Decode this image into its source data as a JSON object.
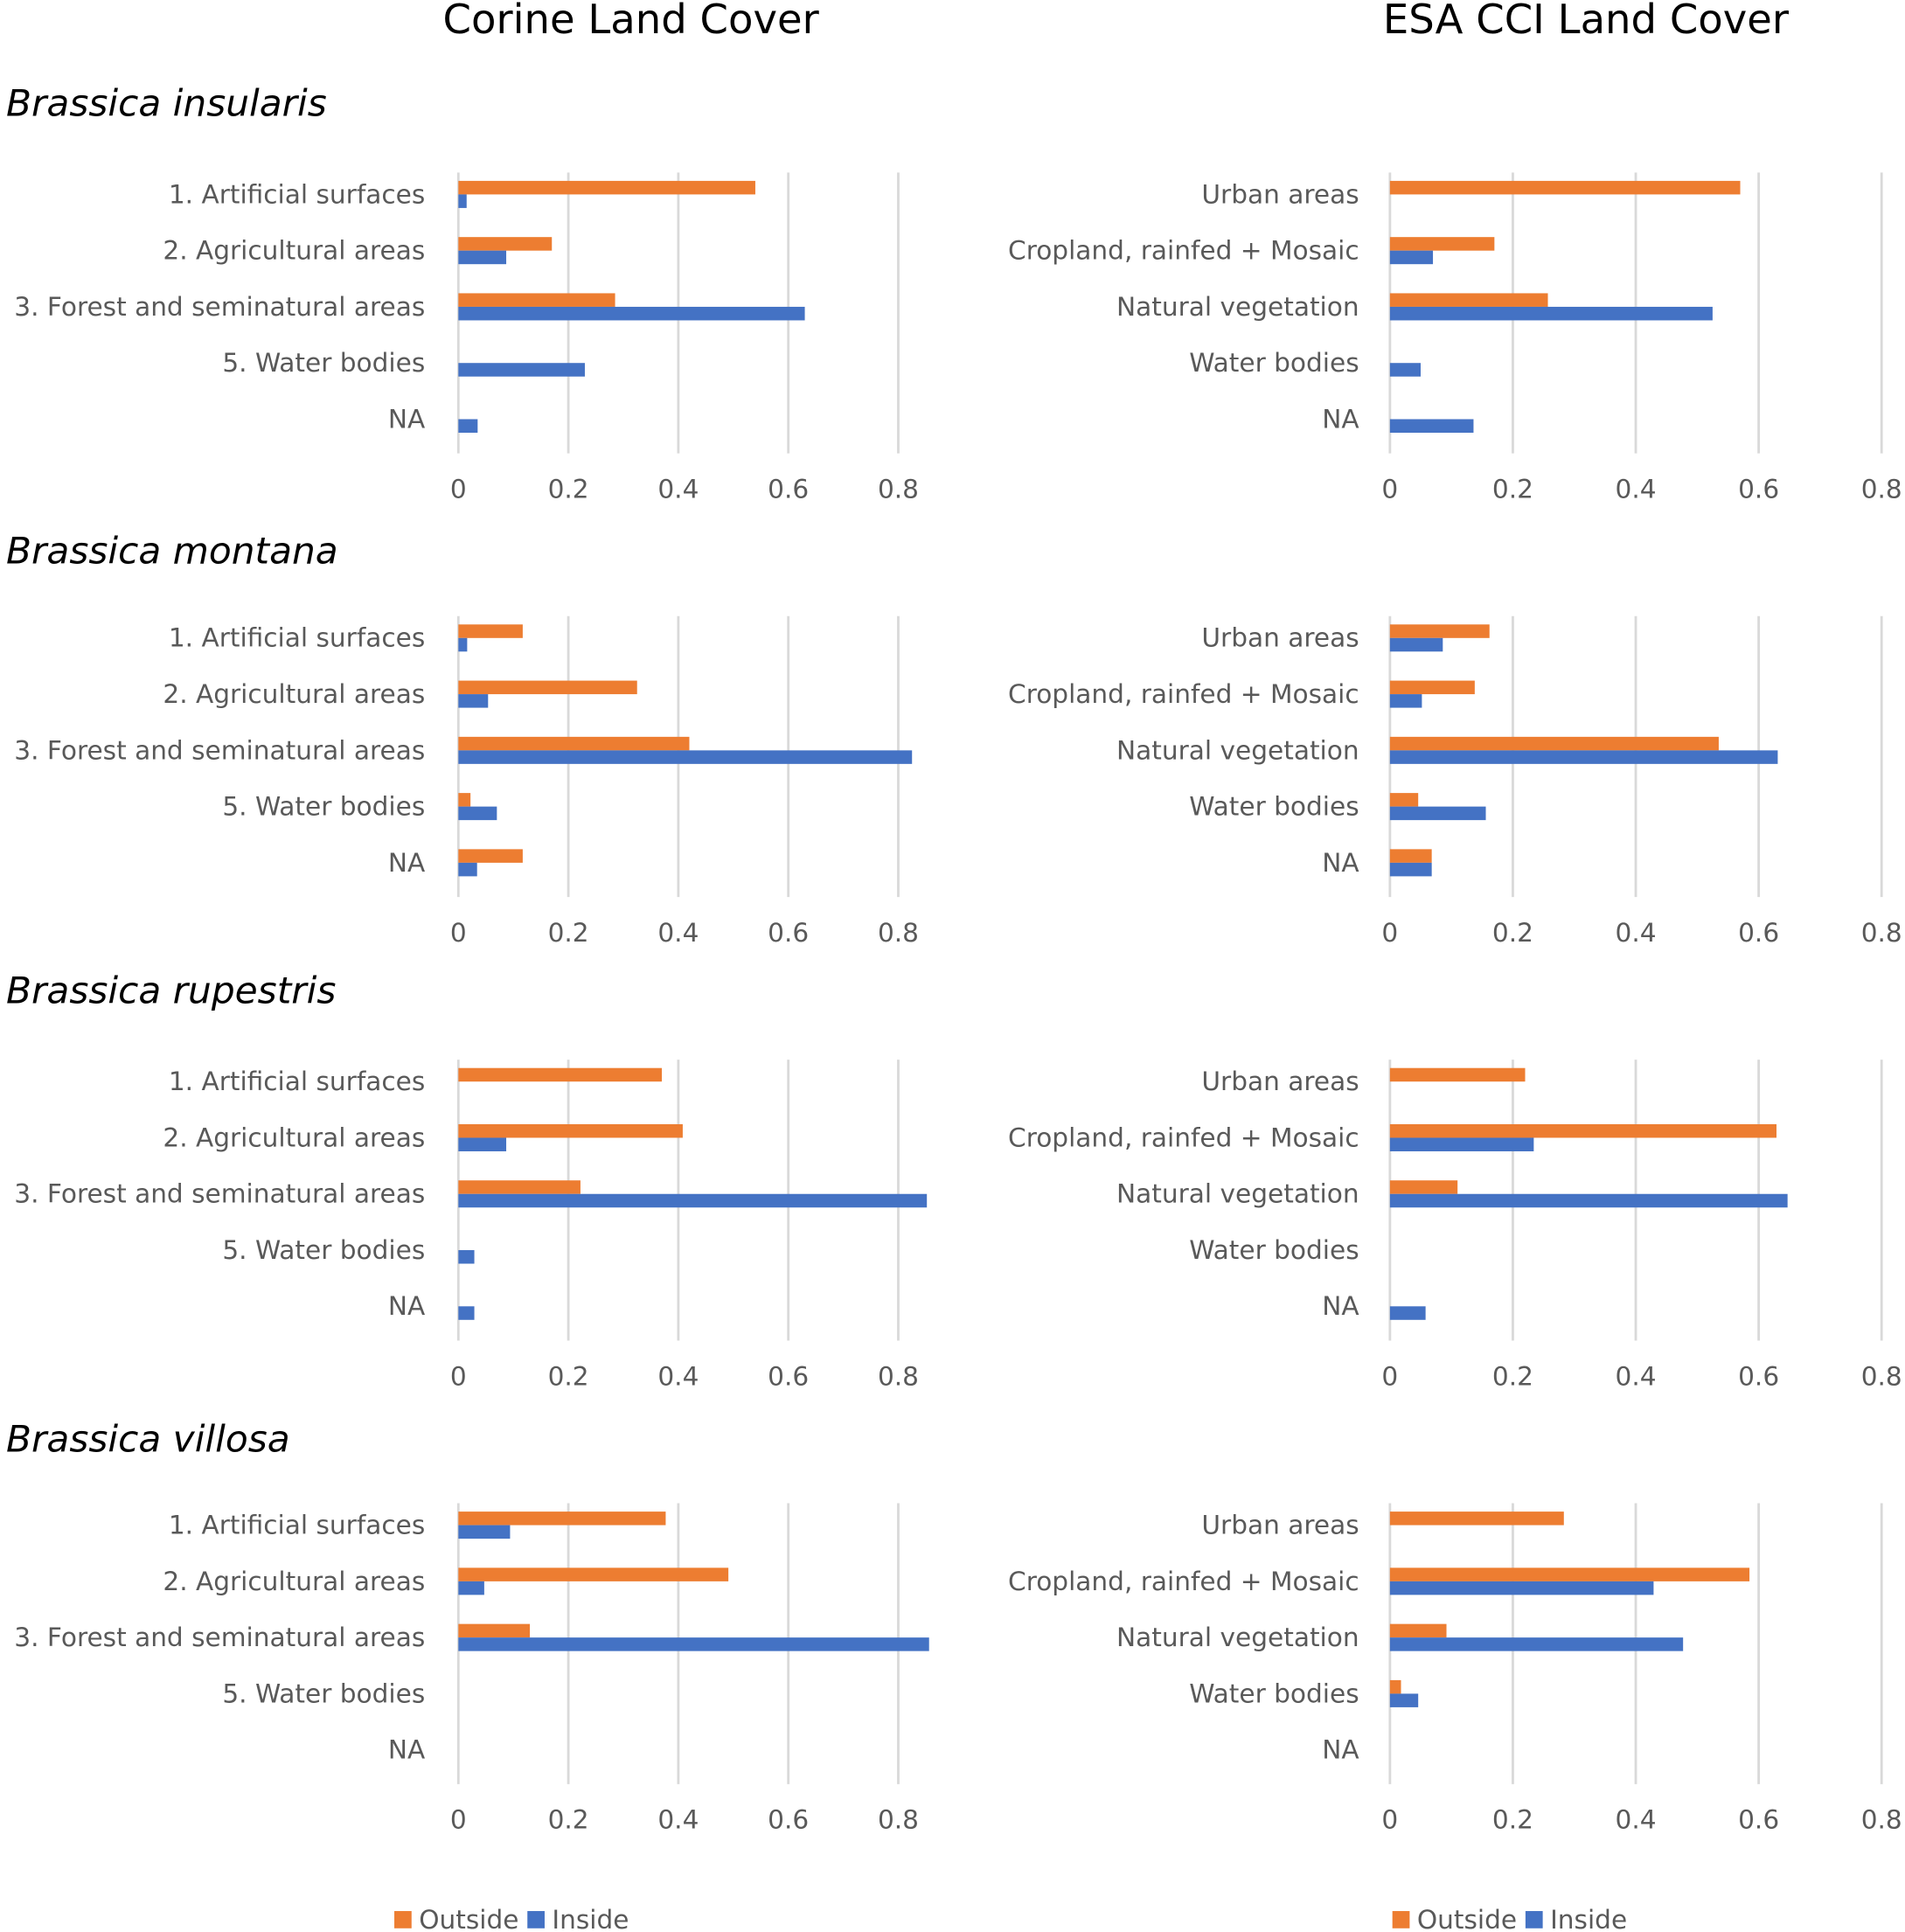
{
  "columns": [
    "Corine Land Cover",
    "ESA CCI Land Cover"
  ],
  "species": [
    "Brassica insularis",
    "Brassica montana",
    "Brassica rupestris",
    "Brassica villosa"
  ],
  "chart_data": [
    {
      "type": "bar",
      "orientation": "horizontal",
      "categories": [
        "1. Artificial surfaces",
        "2. Agricultural areas",
        "3. Forest and seminatural areas",
        "5. Water bodies",
        "NA"
      ],
      "series": [
        {
          "name": "Outside",
          "color": "#ed7d31",
          "values": [
            0.54,
            0.17,
            0.285,
            0,
            0
          ]
        },
        {
          "name": "Inside",
          "color": "#4472c4",
          "values": [
            0.015,
            0.087,
            0.63,
            0.23,
            0.035
          ]
        }
      ],
      "xlim": [
        0,
        0.8
      ],
      "xticks": [
        0,
        0.2,
        0.4,
        0.6,
        0.8
      ],
      "grid": true
    },
    {
      "type": "bar",
      "orientation": "horizontal",
      "categories": [
        "Urban areas",
        "Cropland, rainfed + Mosaic",
        "Natural vegetation",
        "Water bodies",
        "NA"
      ],
      "series": [
        {
          "name": "Outside",
          "color": "#ed7d31",
          "values": [
            0.57,
            0.17,
            0.257,
            0,
            0
          ]
        },
        {
          "name": "Inside",
          "color": "#4472c4",
          "values": [
            0,
            0.07,
            0.525,
            0.05,
            0.136
          ]
        }
      ],
      "xlim": [
        0,
        0.8
      ],
      "xticks": [
        0,
        0.2,
        0.4,
        0.6,
        0.8
      ],
      "grid": true
    },
    {
      "type": "bar",
      "orientation": "horizontal",
      "categories": [
        "1. Artificial surfaces",
        "2. Agricultural areas",
        "3. Forest and seminatural areas",
        "5. Water bodies",
        "NA"
      ],
      "series": [
        {
          "name": "Outside",
          "color": "#ed7d31",
          "values": [
            0.117,
            0.325,
            0.42,
            0.022,
            0.117
          ]
        },
        {
          "name": "Inside",
          "color": "#4472c4",
          "values": [
            0.016,
            0.054,
            0.825,
            0.07,
            0.034
          ]
        }
      ],
      "xlim": [
        0,
        0.8
      ],
      "xticks": [
        0,
        0.2,
        0.4,
        0.6,
        0.8
      ],
      "grid": true
    },
    {
      "type": "bar",
      "orientation": "horizontal",
      "categories": [
        "Urban areas",
        "Cropland, rainfed + Mosaic",
        "Natural vegetation",
        "Water bodies",
        "NA"
      ],
      "series": [
        {
          "name": "Outside",
          "color": "#ed7d31",
          "values": [
            0.162,
            0.138,
            0.535,
            0.046,
            0.068
          ]
        },
        {
          "name": "Inside",
          "color": "#4472c4",
          "values": [
            0.086,
            0.052,
            0.631,
            0.156,
            0.068
          ]
        }
      ],
      "xlim": [
        0,
        0.8
      ],
      "xticks": [
        0,
        0.2,
        0.4,
        0.6,
        0.8
      ],
      "grid": true
    },
    {
      "type": "bar",
      "orientation": "horizontal",
      "categories": [
        "1. Artificial surfaces",
        "2. Agricultural areas",
        "3. Forest and seminatural areas",
        "5. Water bodies",
        "NA"
      ],
      "series": [
        {
          "name": "Outside",
          "color": "#ed7d31",
          "values": [
            0.37,
            0.408,
            0.222,
            0,
            0
          ]
        },
        {
          "name": "Inside",
          "color": "#4472c4",
          "values": [
            0,
            0.087,
            0.852,
            0.029,
            0.029
          ]
        }
      ],
      "xlim": [
        0,
        0.8
      ],
      "xticks": [
        0,
        0.2,
        0.4,
        0.6,
        0.8
      ],
      "grid": true
    },
    {
      "type": "bar",
      "orientation": "horizontal",
      "categories": [
        "Urban areas",
        "Cropland, rainfed + Mosaic",
        "Natural vegetation",
        "Water bodies",
        "NA"
      ],
      "series": [
        {
          "name": "Outside",
          "color": "#ed7d31",
          "values": [
            0.22,
            0.629,
            0.11,
            0,
            0
          ]
        },
        {
          "name": "Inside",
          "color": "#4472c4",
          "values": [
            0,
            0.234,
            0.647,
            0,
            0.058
          ]
        }
      ],
      "xlim": [
        0,
        0.8
      ],
      "xticks": [
        0,
        0.2,
        0.4,
        0.6,
        0.8
      ],
      "grid": true
    },
    {
      "type": "bar",
      "orientation": "horizontal",
      "categories": [
        "1. Artificial surfaces",
        "2. Agricultural areas",
        "3. Forest and seminatural areas",
        "5. Water bodies",
        "NA"
      ],
      "series": [
        {
          "name": "Outside",
          "color": "#ed7d31",
          "values": [
            0.377,
            0.491,
            0.13,
            0,
            0
          ]
        },
        {
          "name": "Inside",
          "color": "#4472c4",
          "values": [
            0.094,
            0.047,
            0.856,
            0,
            0
          ]
        }
      ],
      "xlim": [
        0,
        0.8
      ],
      "xticks": [
        0,
        0.2,
        0.4,
        0.6,
        0.8
      ],
      "grid": true
    },
    {
      "type": "bar",
      "orientation": "horizontal",
      "categories": [
        "Urban areas",
        "Cropland, rainfed + Mosaic",
        "Natural vegetation",
        "Water bodies",
        "NA"
      ],
      "series": [
        {
          "name": "Outside",
          "color": "#ed7d31",
          "values": [
            0.283,
            0.585,
            0.092,
            0.018,
            0
          ]
        },
        {
          "name": "Inside",
          "color": "#4472c4",
          "values": [
            0,
            0.429,
            0.477,
            0.046,
            0
          ]
        }
      ],
      "xlim": [
        0,
        0.8
      ],
      "xticks": [
        0,
        0.2,
        0.4,
        0.6,
        0.8
      ],
      "grid": true
    }
  ]
}
